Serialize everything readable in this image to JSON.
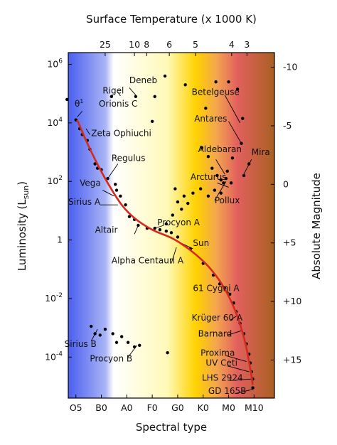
{
  "chart_data": {
    "type": "scatter",
    "title": "Surface Temperature (x 1000 K)",
    "xlabel": "Spectral type",
    "ylabel": "Luminosity (L",
    "ylabel_sub": "sun",
    "ylabel_close": ")",
    "y2label": "Absolute Magnitude",
    "grid": false,
    "x_scale": "spectral type index (O5=0, B0=1, A0=2, F0=3, G0=4, K0=5, M0=6, M10=7)",
    "y_scale": "log10 of luminosity in solar units",
    "xlim": [
      -0.3,
      7.8
    ],
    "ylim": [
      -5.4,
      6.4
    ],
    "x_ticks": [
      {
        "label": "O5",
        "x": 0
      },
      {
        "label": "B0",
        "x": 1
      },
      {
        "label": "A0",
        "x": 2
      },
      {
        "label": "F0",
        "x": 3
      },
      {
        "label": "G0",
        "x": 4
      },
      {
        "label": "K0",
        "x": 5
      },
      {
        "label": "M0",
        "x": 6
      },
      {
        "label": "M10",
        "x": 7
      }
    ],
    "top_ticks": [
      {
        "label": "25",
        "x": 1.15
      },
      {
        "label": "10",
        "x": 2.3
      },
      {
        "label": "8",
        "x": 2.78
      },
      {
        "label": "6",
        "x": 3.67
      },
      {
        "label": "5",
        "x": 4.7
      },
      {
        "label": "4",
        "x": 6.12
      },
      {
        "label": "3",
        "x": 6.72
      }
    ],
    "y_ticks": [
      {
        "label": "10",
        "exp": "6",
        "y": 6
      },
      {
        "label": "10",
        "exp": "4",
        "y": 4
      },
      {
        "label": "10",
        "exp": "2",
        "y": 2
      },
      {
        "label": "1",
        "exp": "",
        "y": 0
      },
      {
        "label": "10",
        "exp": "-2",
        "y": -2
      },
      {
        "label": "10",
        "exp": "-4",
        "y": -4
      }
    ],
    "right_ticks": [
      {
        "label": "-10",
        "y": 5.9
      },
      {
        "label": "-5",
        "y": 3.9
      },
      {
        "label": "0",
        "y": 1.9
      },
      {
        "label": "+5",
        "y": -0.1
      },
      {
        "label": "+10",
        "y": -2.1
      },
      {
        "label": "+15",
        "y": -4.1
      }
    ],
    "background_colors": [
      "#4a5ff0",
      "#a9b4f5",
      "#ffffff",
      "#fff9b8",
      "#ffd200",
      "#f3a54f",
      "#e2605e",
      "#a96022"
    ],
    "main_sequence_color": "#d42a1e",
    "main_sequence": [
      {
        "x": 0.05,
        "y": 4.1
      },
      {
        "x": 0.45,
        "y": 3.3
      },
      {
        "x": 0.9,
        "y": 2.5
      },
      {
        "x": 1.35,
        "y": 1.8
      },
      {
        "x": 1.8,
        "y": 1.2
      },
      {
        "x": 2.3,
        "y": 0.75
      },
      {
        "x": 3.0,
        "y": 0.35
      },
      {
        "x": 3.8,
        "y": 0.05
      },
      {
        "x": 4.5,
        "y": -0.35
      },
      {
        "x": 5.2,
        "y": -0.9
      },
      {
        "x": 5.8,
        "y": -1.6
      },
      {
        "x": 6.3,
        "y": -2.5
      },
      {
        "x": 6.65,
        "y": -3.5
      },
      {
        "x": 6.85,
        "y": -4.4
      },
      {
        "x": 6.95,
        "y": -4.95
      }
    ],
    "stars": [
      {
        "x": -0.35,
        "y": 4.8
      },
      {
        "x": 0.0,
        "y": 4.1
      },
      {
        "x": 0.15,
        "y": 3.8
      },
      {
        "x": 0.45,
        "y": 3.4
      },
      {
        "x": 0.25,
        "y": 3.6
      },
      {
        "x": 0.55,
        "y": 3.1
      },
      {
        "x": 0.75,
        "y": 2.6
      },
      {
        "x": 0.85,
        "y": 2.45
      },
      {
        "x": 1.0,
        "y": 2.4
      },
      {
        "x": 1.25,
        "y": 2.1
      },
      {
        "x": 1.55,
        "y": 1.9
      },
      {
        "x": 1.6,
        "y": 1.7
      },
      {
        "x": 1.75,
        "y": 1.5
      },
      {
        "x": 1.95,
        "y": 1.2
      },
      {
        "x": 2.1,
        "y": 0.8
      },
      {
        "x": 2.3,
        "y": 0.7
      },
      {
        "x": 2.45,
        "y": 0.5
      },
      {
        "x": 2.8,
        "y": 0.4
      },
      {
        "x": 3.1,
        "y": 0.4
      },
      {
        "x": 3.3,
        "y": 0.35
      },
      {
        "x": 3.55,
        "y": 0.3
      },
      {
        "x": 3.75,
        "y": 0.25
      },
      {
        "x": 4.0,
        "y": 0.1
      },
      {
        "x": 4.5,
        "y": -0.3
      },
      {
        "x": 5.0,
        "y": -0.8
      },
      {
        "x": 5.4,
        "y": -1.2
      },
      {
        "x": 5.65,
        "y": -1.5
      },
      {
        "x": 5.85,
        "y": -1.65
      },
      {
        "x": 6.05,
        "y": -1.85
      },
      {
        "x": 6.2,
        "y": -2.15
      },
      {
        "x": 6.3,
        "y": -2.45
      },
      {
        "x": 6.45,
        "y": -2.85
      },
      {
        "x": 6.6,
        "y": -3.2
      },
      {
        "x": 6.7,
        "y": -3.55
      },
      {
        "x": 6.8,
        "y": -3.9
      },
      {
        "x": 6.85,
        "y": -4.2
      },
      {
        "x": 6.9,
        "y": -4.5
      },
      {
        "x": 6.95,
        "y": -4.75
      },
      {
        "x": 6.95,
        "y": -5.05
      },
      {
        "x": 1.4,
        "y": 4.9
      },
      {
        "x": 2.35,
        "y": 4.9
      },
      {
        "x": 3.1,
        "y": 4.9
      },
      {
        "x": 3.0,
        "y": 4.05
      },
      {
        "x": 3.5,
        "y": 5.6
      },
      {
        "x": 4.3,
        "y": 5.3
      },
      {
        "x": 5.1,
        "y": 4.5
      },
      {
        "x": 5.5,
        "y": 5.4
      },
      {
        "x": 6.0,
        "y": 5.4
      },
      {
        "x": 6.35,
        "y": 5.15
      },
      {
        "x": 6.5,
        "y": 3.3
      },
      {
        "x": 6.55,
        "y": 4.15
      },
      {
        "x": 6.6,
        "y": 2.2
      },
      {
        "x": 6.15,
        "y": 2.8
      },
      {
        "x": 6.8,
        "y": 2.6
      },
      {
        "x": 4.95,
        "y": 3.15
      },
      {
        "x": 5.2,
        "y": 2.85
      },
      {
        "x": 5.35,
        "y": 2.45
      },
      {
        "x": 5.55,
        "y": 2.2
      },
      {
        "x": 5.7,
        "y": 2.05
      },
      {
        "x": 5.8,
        "y": 1.95
      },
      {
        "x": 5.9,
        "y": 2.1
      },
      {
        "x": 5.95,
        "y": 2.35
      },
      {
        "x": 6.1,
        "y": 1.95
      },
      {
        "x": 5.7,
        "y": 1.6
      },
      {
        "x": 5.45,
        "y": 1.7
      },
      {
        "x": 5.2,
        "y": 1.5
      },
      {
        "x": 4.9,
        "y": 1.75
      },
      {
        "x": 4.6,
        "y": 1.6
      },
      {
        "x": 4.4,
        "y": 1.25
      },
      {
        "x": 4.15,
        "y": 1.05
      },
      {
        "x": 4.25,
        "y": 1.5
      },
      {
        "x": 4.0,
        "y": 1.3
      },
      {
        "x": 3.8,
        "y": 0.85
      },
      {
        "x": 3.55,
        "y": 0.55
      },
      {
        "x": 3.9,
        "y": 1.75
      },
      {
        "x": 0.6,
        "y": -2.95
      },
      {
        "x": 0.75,
        "y": -3.2
      },
      {
        "x": 0.95,
        "y": -3.25
      },
      {
        "x": 1.15,
        "y": -3.05
      },
      {
        "x": 1.45,
        "y": -3.2
      },
      {
        "x": 1.6,
        "y": -3.5
      },
      {
        "x": 1.8,
        "y": -3.3
      },
      {
        "x": 2.05,
        "y": -3.5
      },
      {
        "x": 2.3,
        "y": -3.65
      },
      {
        "x": 2.5,
        "y": -3.6
      },
      {
        "x": 3.6,
        "y": -3.85
      }
    ],
    "annotations": [
      {
        "label": "Rigel",
        "sup": "",
        "x": 1.05,
        "y": 5.0
      },
      {
        "label": "Deneb",
        "sup": "",
        "x": 2.1,
        "y": 5.35
      },
      {
        "label": "θ",
        "sup": "1",
        "x": -0.05,
        "y": 4.55
      },
      {
        "label": "Orionis C",
        "sup": "",
        "x": 0.9,
        "y": 4.55
      },
      {
        "label": "Betelgeuse",
        "sup": "",
        "x": 4.55,
        "y": 4.95
      },
      {
        "label": "Antares",
        "sup": "",
        "x": 4.65,
        "y": 4.05
      },
      {
        "label": "Zeta Ophiuchi",
        "sup": "",
        "x": 0.6,
        "y": 3.55
      },
      {
        "label": "Aldebaran",
        "sup": "",
        "x": 4.8,
        "y": 3.0
      },
      {
        "label": "Mira",
        "sup": "",
        "x": 6.9,
        "y": 2.9
      },
      {
        "label": "Regulus",
        "sup": "",
        "x": 1.4,
        "y": 2.7
      },
      {
        "label": "Arcturus",
        "sup": "",
        "x": 4.5,
        "y": 2.05
      },
      {
        "label": "Vega",
        "sup": "",
        "x": 0.15,
        "y": 1.85
      },
      {
        "label": "Sirius A",
        "sup": "",
        "x": -0.3,
        "y": 1.2
      },
      {
        "label": "Pollux",
        "sup": "",
        "x": 5.45,
        "y": 1.25
      },
      {
        "label": "Procyon A",
        "sup": "",
        "x": 3.2,
        "y": 0.5
      },
      {
        "label": "Altair",
        "sup": "",
        "x": 0.75,
        "y": 0.25
      },
      {
        "label": "Sun",
        "sup": "",
        "x": 4.6,
        "y": -0.2
      },
      {
        "label": "Alpha Centauri A",
        "sup": "",
        "x": 1.4,
        "y": -0.8
      },
      {
        "label": "61 Cygni A",
        "sup": "",
        "x": 4.6,
        "y": -1.75
      },
      {
        "label": "Krüger 60 A",
        "sup": "",
        "x": 4.55,
        "y": -2.75
      },
      {
        "label": "Barnard",
        "sup": "",
        "x": 4.8,
        "y": -3.3
      },
      {
        "label": "Sirius B",
        "sup": "",
        "x": -0.45,
        "y": -3.65
      },
      {
        "label": "Proxima",
        "sup": "",
        "x": 4.9,
        "y": -3.95
      },
      {
        "label": "Procyon B",
        "sup": "",
        "x": 0.55,
        "y": -4.15
      },
      {
        "label": "UV Ceti",
        "sup": "",
        "x": 5.1,
        "y": -4.3
      },
      {
        "label": "LHS 2924",
        "sup": "",
        "x": 4.95,
        "y": -4.8
      },
      {
        "label": "GD 165B",
        "sup": "",
        "x": 5.2,
        "y": -5.25
      }
    ],
    "leaders": [
      {
        "x1": 1.45,
        "y1": 4.95,
        "x2": 1.35,
        "y2": 4.88
      },
      {
        "x1": 1.65,
        "y1": 5.05,
        "x2": 1.75,
        "y2": 4.92
      },
      {
        "x1": 2.1,
        "y1": 5.2,
        "x2": 2.35,
        "y2": 4.95
      },
      {
        "x1": 0.25,
        "y1": 4.4,
        "x2": 0.05,
        "y2": 4.2
      },
      {
        "x1": 0.55,
        "y1": 3.6,
        "x2": 0.4,
        "y2": 3.8
      },
      {
        "x1": 1.65,
        "y1": 2.6,
        "x2": 1.25,
        "y2": 2.1
      },
      {
        "x1": 1.05,
        "y1": 1.7,
        "x2": 1.5,
        "y2": 1.5
      },
      {
        "x1": 0.95,
        "y1": 1.2,
        "x2": 1.65,
        "y2": 1.2
      },
      {
        "x1": 2.3,
        "y1": 0.2,
        "x2": 2.45,
        "y2": 0.5
      },
      {
        "x1": 3.45,
        "y1": 0.5,
        "x2": 3.1,
        "y2": 0.4
      },
      {
        "x1": 4.6,
        "y1": -0.3,
        "x2": 4.0,
        "y2": -0.05
      },
      {
        "x1": 3.75,
        "y1": -0.8,
        "x2": 3.95,
        "y2": -0.25
      },
      {
        "x1": 5.85,
        "y1": 4.95,
        "x2": 6.45,
        "y2": 4.0
      },
      {
        "x1": 6.0,
        "y1": 4.05,
        "x2": 6.5,
        "y2": 3.3
      },
      {
        "x1": 5.5,
        "y1": 2.75,
        "x2": 5.85,
        "y2": 2.25
      },
      {
        "x1": 6.9,
        "y1": 2.75,
        "x2": 6.6,
        "y2": 2.25
      },
      {
        "x1": 5.55,
        "y1": 1.95,
        "x2": 6.0,
        "y2": 1.8
      },
      {
        "x1": 5.45,
        "y1": 1.35,
        "x2": 5.9,
        "y2": 2.0
      },
      {
        "x1": 5.85,
        "y1": -1.7,
        "x2": 6.0,
        "y2": -1.8
      },
      {
        "x1": 6.05,
        "y1": -2.75,
        "x2": 6.3,
        "y2": -2.6
      },
      {
        "x1": 5.95,
        "y1": -3.25,
        "x2": 6.5,
        "y2": -3.1
      },
      {
        "x1": 5.9,
        "y1": -3.95,
        "x2": 6.7,
        "y2": -4.15
      },
      {
        "x1": 5.95,
        "y1": -4.3,
        "x2": 6.8,
        "y2": -4.5
      },
      {
        "x1": 6.05,
        "y1": -4.8,
        "x2": 6.9,
        "y2": -4.75
      },
      {
        "x1": 6.25,
        "y1": -5.25,
        "x2": 6.95,
        "y2": -5.1
      },
      {
        "x1": 0.6,
        "y1": -3.45,
        "x2": 0.85,
        "y2": -3.05
      },
      {
        "x1": 2.05,
        "y1": -4.0,
        "x2": 2.4,
        "y2": -3.6
      }
    ]
  }
}
